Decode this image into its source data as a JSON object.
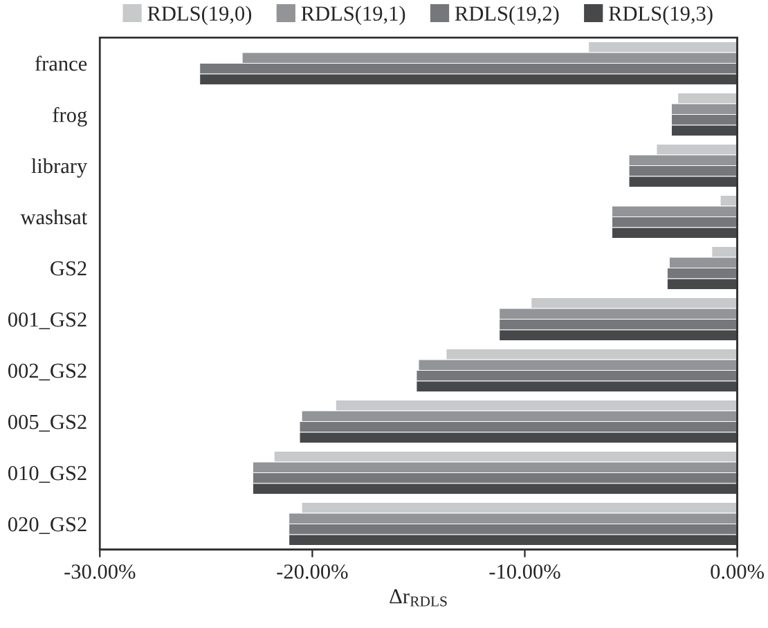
{
  "chart_data": {
    "type": "bar",
    "orientation": "horizontal",
    "xlabel": "Δr$_{RDLS}$",
    "categories": [
      "france",
      "frog",
      "library",
      "washsat",
      "GS2",
      "001_GS2",
      "002_GS2",
      "005_GS2",
      "010_GS2",
      "020_GS2"
    ],
    "series": [
      {
        "name": "RDLS(19,0)",
        "color": "#c8c9cb",
        "values": [
          -7.0,
          -2.8,
          -3.8,
          -0.8,
          -1.2,
          -9.7,
          -13.7,
          -18.9,
          -21.8,
          -20.5
        ]
      },
      {
        "name": "RDLS(19,1)",
        "color": "#939497",
        "values": [
          -23.3,
          -3.1,
          -5.1,
          -5.9,
          -3.2,
          -11.2,
          -15.0,
          -20.5,
          -22.8,
          -21.1
        ]
      },
      {
        "name": "RDLS(19,2)",
        "color": "#76777a",
        "values": [
          -25.3,
          -3.1,
          -5.1,
          -5.9,
          -3.3,
          -11.2,
          -15.1,
          -20.6,
          -22.8,
          -21.1
        ]
      },
      {
        "name": "RDLS(19,3)",
        "color": "#47484a",
        "values": [
          -25.3,
          -3.1,
          -5.1,
          -5.9,
          -3.3,
          -11.2,
          -15.1,
          -20.6,
          -22.8,
          -21.1
        ]
      }
    ],
    "xlim": [
      -30,
      0
    ],
    "xticks": [
      {
        "value": -30,
        "label": "-30.00%"
      },
      {
        "value": -20,
        "label": "-20.00%"
      },
      {
        "value": -10,
        "label": "-10.00%"
      },
      {
        "value": 0,
        "label": "0.00%"
      }
    ],
    "legend": "top",
    "grid": false
  }
}
